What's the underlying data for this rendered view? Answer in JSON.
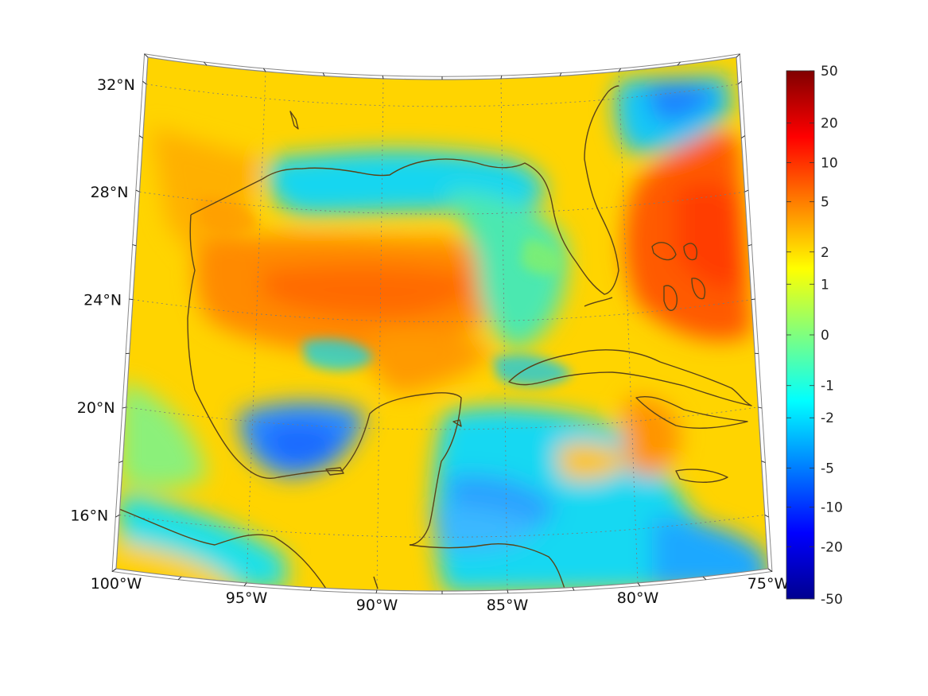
{
  "map": {
    "projection": "conic",
    "lat_range_deg": [
      14,
      33
    ],
    "lon_range_deg": [
      -100,
      -75
    ],
    "coastline_color": "#5a4318",
    "grid_style": "dotted",
    "lat_labels": [
      {
        "value": 32,
        "text": "32°N"
      },
      {
        "value": 28,
        "text": "28°N"
      },
      {
        "value": 24,
        "text": "24°N"
      },
      {
        "value": 20,
        "text": "20°N"
      },
      {
        "value": 16,
        "text": "16°N"
      }
    ],
    "lon_labels": [
      {
        "value": -100,
        "text": "100°W"
      },
      {
        "value": -95,
        "text": "95°W"
      },
      {
        "value": -90,
        "text": "90°W"
      },
      {
        "value": -85,
        "text": "85°W"
      },
      {
        "value": -80,
        "text": "80°W"
      },
      {
        "value": -75,
        "text": "75°W"
      }
    ]
  },
  "colorbar": {
    "colormap": "jet",
    "scale": "symmetric-log",
    "range": [
      -50,
      50
    ],
    "ticks": [
      "50",
      "20",
      "10",
      "5",
      "2",
      "1",
      "0",
      "-1",
      "-2",
      "-5",
      "-10",
      "-20",
      "-50"
    ]
  }
}
